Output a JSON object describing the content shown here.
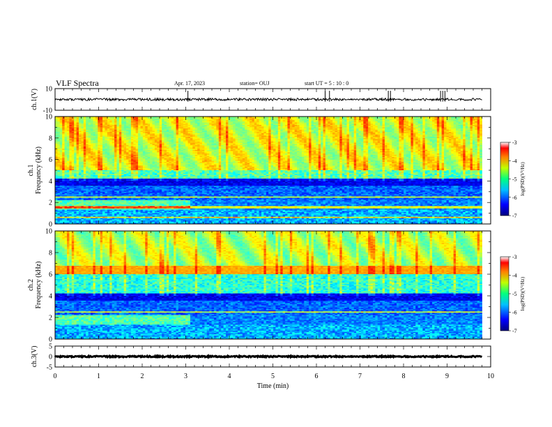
{
  "header": {
    "title": "VLF Spectra",
    "date": "Apr. 17, 2023",
    "station": "station= OUJ",
    "start": "start  UT  =   5  : 10 : 0"
  },
  "chart_data": [
    {
      "type": "line",
      "panel": "waveform-ch1",
      "ylabel": "ch.1(V)",
      "ylim": [
        -10,
        10
      ],
      "yticks": [
        "10",
        "-10"
      ],
      "xlim": [
        0,
        10
      ],
      "baseline_value": 0,
      "spikes_min": [
        3.05,
        6.2,
        6.3,
        7.65,
        7.7,
        8.85,
        8.9,
        8.95
      ]
    },
    {
      "type": "heatmap",
      "panel": "spectrogram-ch1",
      "ylabel": "ch.1\nFrequency (kHz)",
      "ylim": [
        0,
        10
      ],
      "yticks": [
        "0",
        "2",
        "4",
        "6",
        "8",
        "10"
      ],
      "xlim": [
        0,
        9.8
      ],
      "colorbar": {
        "label": "log(PSD)(V²/Hz)",
        "range": [
          -7,
          -3
        ],
        "ticks": [
          "-3",
          "-4",
          "-5",
          "-6",
          "-7"
        ]
      }
    },
    {
      "type": "heatmap",
      "panel": "spectrogram-ch2",
      "ylabel": "ch.2\nFrequency (kHz)",
      "ylim": [
        0,
        10
      ],
      "yticks": [
        "0",
        "2",
        "4",
        "6",
        "8",
        "10"
      ],
      "xlim": [
        0,
        9.8
      ],
      "colorbar": {
        "label": "log(PSD)(V²/Hz)",
        "range": [
          -7,
          -3
        ],
        "ticks": [
          "-3",
          "-4",
          "-5",
          "-6",
          "-7"
        ]
      }
    },
    {
      "type": "line",
      "panel": "waveform-ch3",
      "ylabel": "ch.3(V)",
      "ylim": [
        -5,
        5
      ],
      "yticks": [
        "5",
        "0",
        "-5"
      ],
      "xlim": [
        0,
        10
      ],
      "baseline_value": 0
    }
  ],
  "xaxis": {
    "label": "Time (min)",
    "ticks": [
      "0",
      "1",
      "2",
      "3",
      "4",
      "5",
      "6",
      "7",
      "8",
      "9",
      "10"
    ]
  }
}
